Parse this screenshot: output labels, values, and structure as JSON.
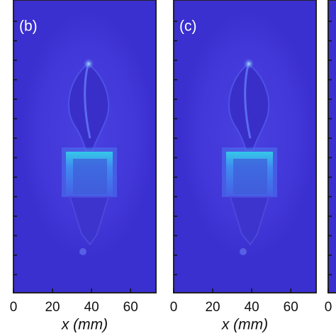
{
  "chart_data": [
    {
      "type": "heatmap",
      "panel_label": "(b)",
      "xlabel": "x (mm)",
      "xlim": [
        0,
        73
      ],
      "xticks": [
        0,
        20,
        40,
        60
      ]
    },
    {
      "type": "heatmap",
      "panel_label": "(c)",
      "xlabel": "x (mm)",
      "xlim": [
        0,
        73
      ],
      "xticks": [
        0,
        20,
        40,
        60
      ]
    },
    {
      "type": "heatmap",
      "xlim": [
        0,
        73
      ],
      "xticks": [
        0
      ]
    }
  ]
}
